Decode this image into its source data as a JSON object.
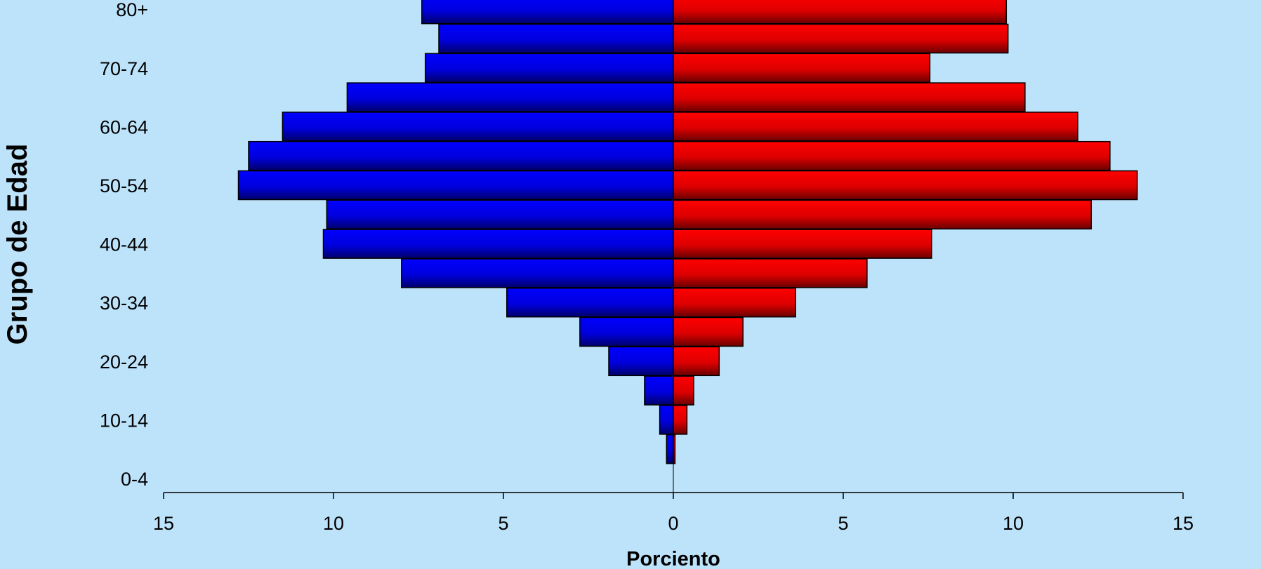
{
  "chart_data": {
    "type": "bar",
    "orientation": "horizontal",
    "subtype": "population-pyramid",
    "categories": [
      "0-4",
      "5-9",
      "10-14",
      "15-19",
      "20-24",
      "25-29",
      "30-34",
      "35-39",
      "40-44",
      "45-49",
      "50-54",
      "55-59",
      "60-64",
      "65-69",
      "70-74",
      "75-79",
      "80+"
    ],
    "category_tick_labels": [
      "0-4",
      "10-14",
      "20-24",
      "30-34",
      "40-44",
      "50-54",
      "60-64",
      "70-74",
      "80+"
    ],
    "series": [
      {
        "side": "left",
        "color": "#0000ff",
        "values": [
          0.0,
          0.2,
          0.4,
          0.85,
          1.9,
          2.75,
          4.9,
          8.0,
          10.3,
          10.2,
          12.8,
          12.5,
          11.5,
          9.6,
          7.3,
          6.9,
          7.4
        ]
      },
      {
        "side": "right",
        "color": "#ff0000",
        "values": [
          0.0,
          0.05,
          0.4,
          0.6,
          1.35,
          2.05,
          3.6,
          5.7,
          7.6,
          12.3,
          13.65,
          12.85,
          11.9,
          10.35,
          7.55,
          9.85,
          9.8
        ]
      }
    ],
    "xlabel": "Porciento",
    "ylabel": "Grupo de Edad",
    "xlim": [
      -15,
      15
    ],
    "x_ticks": [
      -15,
      -10,
      -5,
      0,
      5,
      10,
      15
    ],
    "x_tick_labels": [
      "15",
      "10",
      "5",
      "0",
      "5",
      "10",
      "15"
    ],
    "grid": false,
    "legend": "none"
  }
}
